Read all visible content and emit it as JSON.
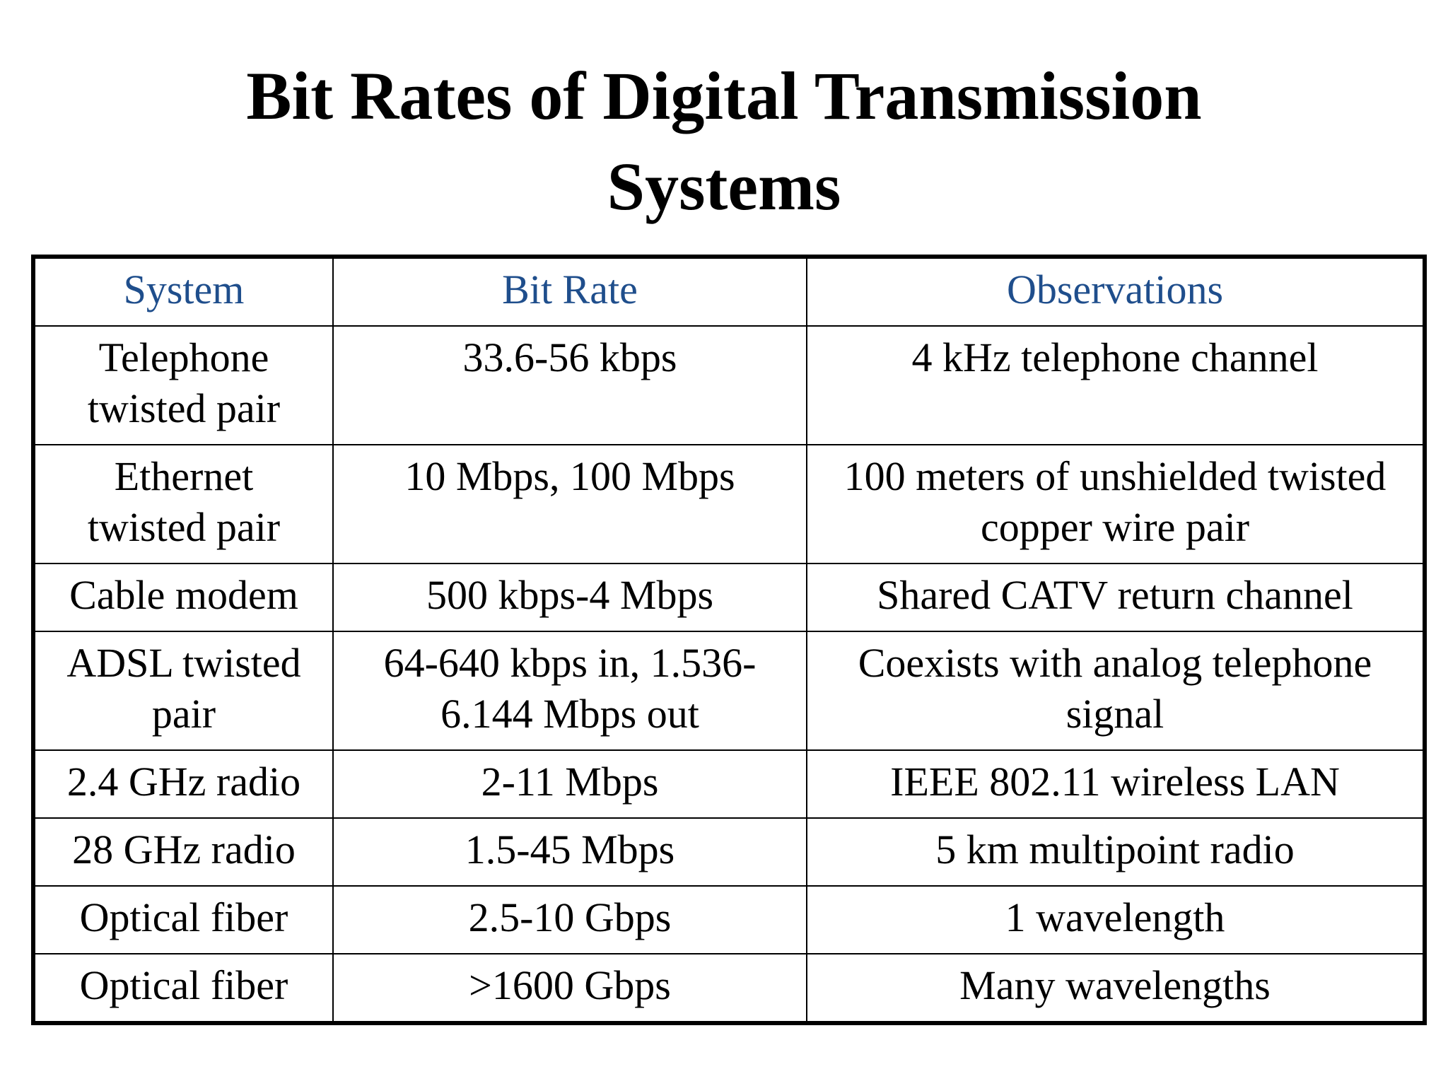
{
  "title": {
    "line1": "Bit Rates of Digital Transmission",
    "line2": "Systems"
  },
  "table": {
    "headers": [
      "System",
      "Bit Rate",
      "Observations"
    ],
    "rows": [
      {
        "system": [
          "Telephone",
          "twisted pair"
        ],
        "bit_rate": [
          "33.6-56 kbps"
        ],
        "observations": [
          "4 kHz telephone channel"
        ]
      },
      {
        "system": [
          "Ethernet",
          "twisted pair"
        ],
        "bit_rate": [
          "10 Mbps, 100 Mbps"
        ],
        "observations": [
          "100 meters of unshielded twisted",
          "copper wire pair"
        ]
      },
      {
        "system": [
          "Cable modem"
        ],
        "bit_rate": [
          "500 kbps-4 Mbps"
        ],
        "observations": [
          "Shared CATV return channel"
        ]
      },
      {
        "system": [
          "ADSL twisted",
          "pair"
        ],
        "bit_rate": [
          "64-640 kbps in, 1.536-",
          "6.144 Mbps out"
        ],
        "observations": [
          "Coexists with analog telephone",
          "signal"
        ]
      },
      {
        "system": [
          "2.4 GHz radio"
        ],
        "bit_rate": [
          "2-11 Mbps"
        ],
        "observations": [
          "IEEE 802.11 wireless LAN"
        ]
      },
      {
        "system": [
          "28 GHz radio"
        ],
        "bit_rate": [
          "1.5-45 Mbps"
        ],
        "observations": [
          "5 km multipoint radio"
        ]
      },
      {
        "system": [
          "Optical fiber"
        ],
        "bit_rate": [
          "2.5-10 Gbps"
        ],
        "observations": [
          "1 wavelength"
        ]
      },
      {
        "system": [
          "Optical fiber"
        ],
        "bit_rate": [
          ">1600 Gbps"
        ],
        "observations": [
          "Many wavelengths"
        ]
      }
    ]
  },
  "colors": {
    "header_text": "#1f4e8c",
    "border": "#000000",
    "background": "#ffffff"
  }
}
